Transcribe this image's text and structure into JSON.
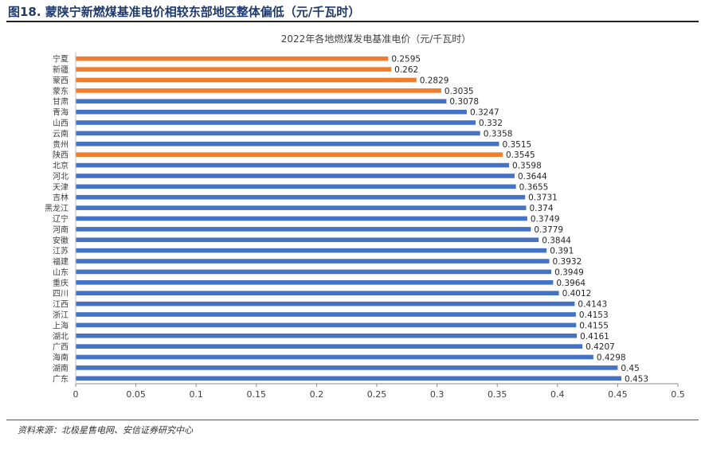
{
  "figure": {
    "title": "图18. 蒙陕宁新燃煤基准电价相较东部地区整体偏低（元/千瓦时）",
    "source": "资料来源：北极星售电网、安信证券研究中心"
  },
  "chart_data": {
    "type": "bar",
    "orientation": "horizontal",
    "title": "2022年各地燃煤发电基准电价（元/千瓦时）",
    "xlabel": "",
    "ylabel": "",
    "xlim": [
      0,
      0.5
    ],
    "x_ticks": [
      "0",
      "0.05",
      "0.1",
      "0.15",
      "0.2",
      "0.25",
      "0.3",
      "0.35",
      "0.4",
      "0.45",
      "0.5"
    ],
    "grid": false,
    "data_labels": true,
    "colors": {
      "default": "#4472c4",
      "highlight": "#ed7d31"
    },
    "categories": [
      "宁夏",
      "新疆",
      "蒙西",
      "蒙东",
      "甘肃",
      "青海",
      "山西",
      "云南",
      "贵州",
      "陕西",
      "北京",
      "河北",
      "天津",
      "吉林",
      "黑龙江",
      "辽宁",
      "河南",
      "安徽",
      "江苏",
      "福建",
      "山东",
      "重庆",
      "四川",
      "江西",
      "浙江",
      "上海",
      "湖北",
      "广西",
      "海南",
      "湖南",
      "广东"
    ],
    "values": [
      0.2595,
      0.262,
      0.2829,
      0.3035,
      0.3078,
      0.3247,
      0.332,
      0.3358,
      0.3515,
      0.3545,
      0.3598,
      0.3644,
      0.3655,
      0.3731,
      0.374,
      0.3749,
      0.3779,
      0.3844,
      0.391,
      0.3932,
      0.3949,
      0.3964,
      0.4012,
      0.4143,
      0.4153,
      0.4155,
      0.4161,
      0.4207,
      0.4298,
      0.45,
      0.453
    ],
    "value_labels": [
      "0.2595",
      "0.262",
      "0.2829",
      "0.3035",
      "0.3078",
      "0.3247",
      "0.332",
      "0.3358",
      "0.3515",
      "0.3545",
      "0.3598",
      "0.3644",
      "0.3655",
      "0.3731",
      "0.374",
      "0.3749",
      "0.3779",
      "0.3844",
      "0.391",
      "0.3932",
      "0.3949",
      "0.3964",
      "0.4012",
      "0.4143",
      "0.4153",
      "0.4155",
      "0.4161",
      "0.4207",
      "0.4298",
      "0.45",
      "0.453"
    ],
    "highlighted": [
      "宁夏",
      "新疆",
      "蒙西",
      "蒙东",
      "陕西"
    ]
  }
}
